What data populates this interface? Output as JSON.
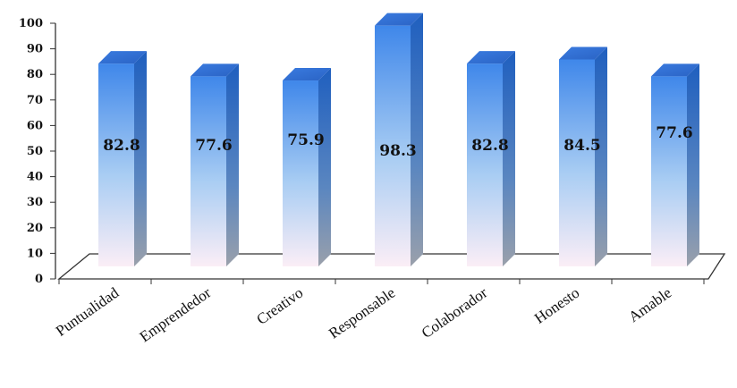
{
  "chart_data": {
    "type": "bar",
    "style": "3d-cylinder-columns",
    "categories": [
      "Puntualidad",
      "Emprendedor",
      "Creativo",
      "Responsable",
      "Colaborador",
      "Honesto",
      "Amable"
    ],
    "values": [
      82.8,
      77.6,
      75.9,
      98.3,
      82.8,
      84.5,
      77.6
    ],
    "value_labels": [
      "82.8",
      "77.6",
      "75.9",
      "98.3",
      "82.8",
      "84.5",
      "77.6"
    ],
    "y_ticks": [
      "0",
      "10",
      "20",
      "30",
      "40",
      "50",
      "60",
      "70",
      "80",
      "90",
      "100"
    ],
    "ylim": [
      0,
      100
    ],
    "title": "",
    "xlabel": "",
    "ylabel": "",
    "grid": false,
    "legend": "none",
    "colors": {
      "bar_top": "#3f87ea",
      "bar_bottom": "#fbeef6",
      "bar_side": "#1f5fbf",
      "axis": "#333333"
    }
  }
}
